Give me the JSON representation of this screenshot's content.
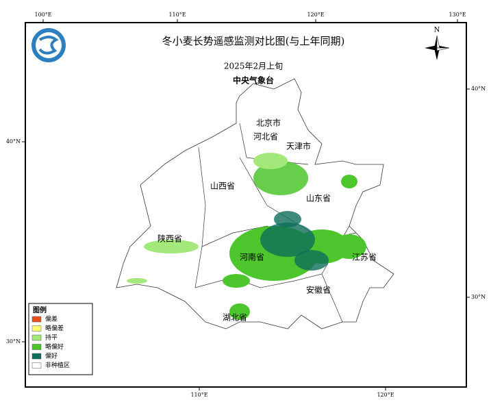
{
  "header": {
    "title": "冬小麦长势遥感监测对比图(与上年同期)",
    "subtitle": "2025年2月上旬",
    "agency": "中央气象台"
  },
  "axes": {
    "top": [
      "100°E",
      "110°E",
      "120°E",
      "130°E"
    ],
    "bottom": [
      "110°E",
      "120°E"
    ],
    "left": [
      "40°N",
      "30°N"
    ],
    "right": [
      "40°N",
      "30°N"
    ]
  },
  "compass": "N",
  "provinces": [
    "北京市",
    "河北省",
    "天津市",
    "山西省",
    "山东省",
    "陕西省",
    "河南省",
    "江苏省",
    "安徽省",
    "湖北省"
  ],
  "legend": {
    "title": "图例",
    "items": [
      {
        "label": "偏差",
        "color": "#e8501e"
      },
      {
        "label": "略偏差",
        "color": "#ffff73"
      },
      {
        "label": "持平",
        "color": "#a3e87a"
      },
      {
        "label": "略偏好",
        "color": "#4cc62c"
      },
      {
        "label": "偏好",
        "color": "#0e6e5a"
      },
      {
        "label": "非种植区",
        "color": "#ffffff"
      }
    ]
  }
}
